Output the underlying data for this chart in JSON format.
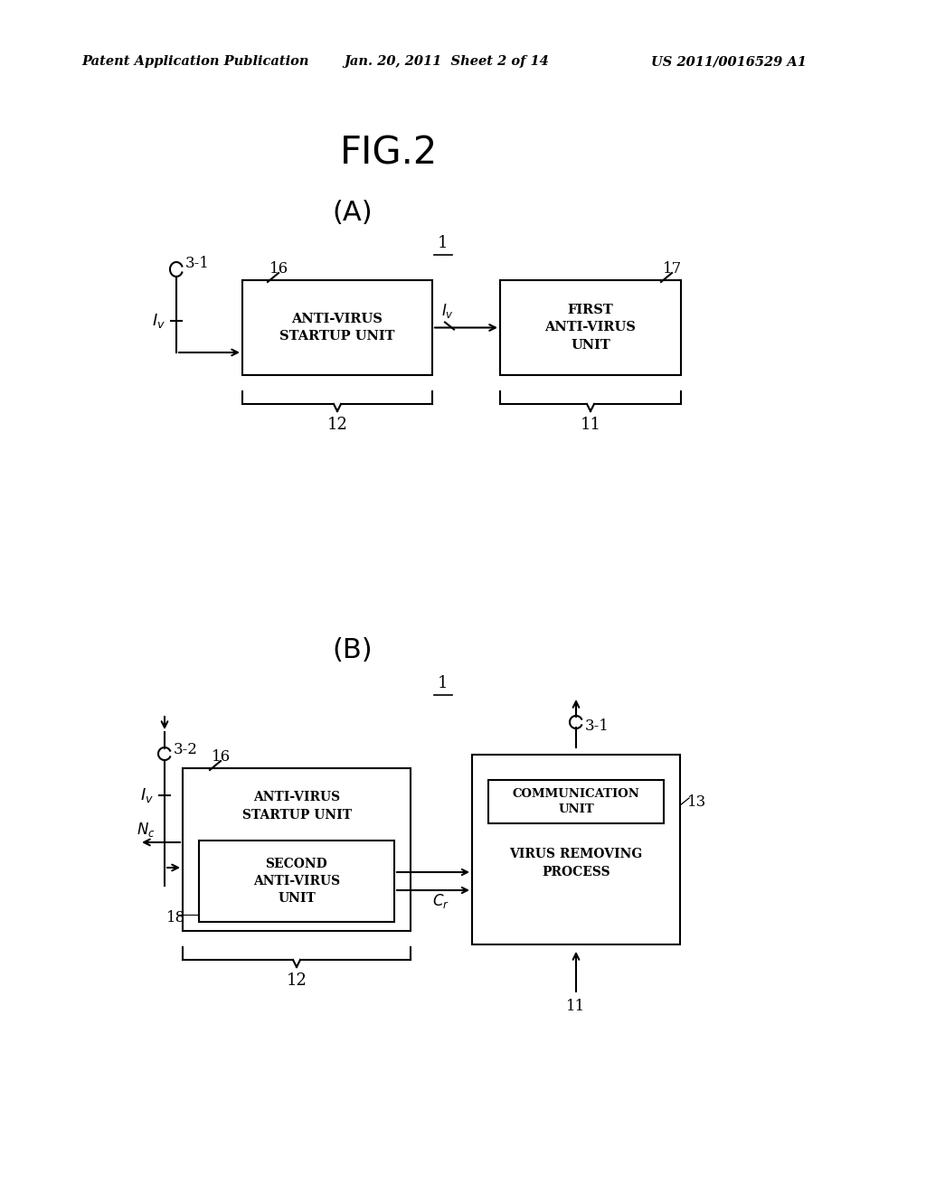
{
  "background_color": "#ffffff",
  "header_left": "Patent Application Publication",
  "header_mid": "Jan. 20, 2011  Sheet 2 of 14",
  "header_right": "US 2011/0016529 A1",
  "fig_title": "FIG.2",
  "section_A_label": "(A)",
  "section_B_label": "(B)",
  "text_color": "#000000",
  "line_color": "#000000"
}
